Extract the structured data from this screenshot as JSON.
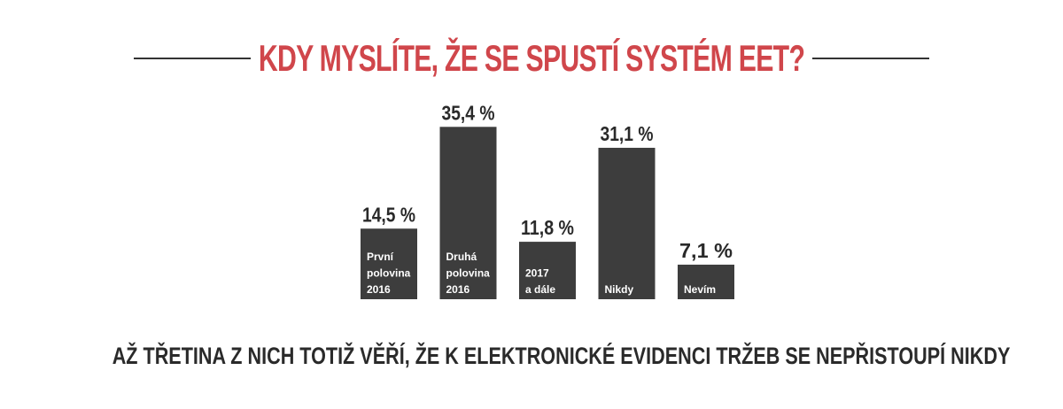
{
  "header": {
    "title": "KDY MYSLÍTE, ŽE SE SPUSTÍ SYSTÉM EET?"
  },
  "footer": {
    "subtitle": "AŽ TŘETINA Z NICH TOTIŽ VĚŘÍ, ŽE K ELEKTRONICKÉ EVIDENCI TRŽEB SE NEPŘISTOUPÍ NIKDY"
  },
  "chart_data": {
    "type": "bar",
    "title": "KDY MYSLÍTE, ŽE SE SPUSTÍ SYSTÉM EET?",
    "categories": [
      [
        "První",
        "polovina",
        "2016"
      ],
      [
        "Druhá",
        "polovina",
        "2016"
      ],
      [
        "2017",
        "a dále"
      ],
      [
        "Nikdy"
      ],
      [
        "Nevím"
      ]
    ],
    "values": [
      14.5,
      35.4,
      11.8,
      31.1,
      7.1
    ],
    "value_labels": [
      "14,5 %",
      "35,4 %",
      "11,8 %",
      "31,1 %",
      "7,1 %"
    ],
    "unit": "%",
    "bar_color": "#3d3d3d",
    "label_color": "#ffffff",
    "value_label_color": "#2a2a2a",
    "grid": false,
    "legend": "none"
  }
}
